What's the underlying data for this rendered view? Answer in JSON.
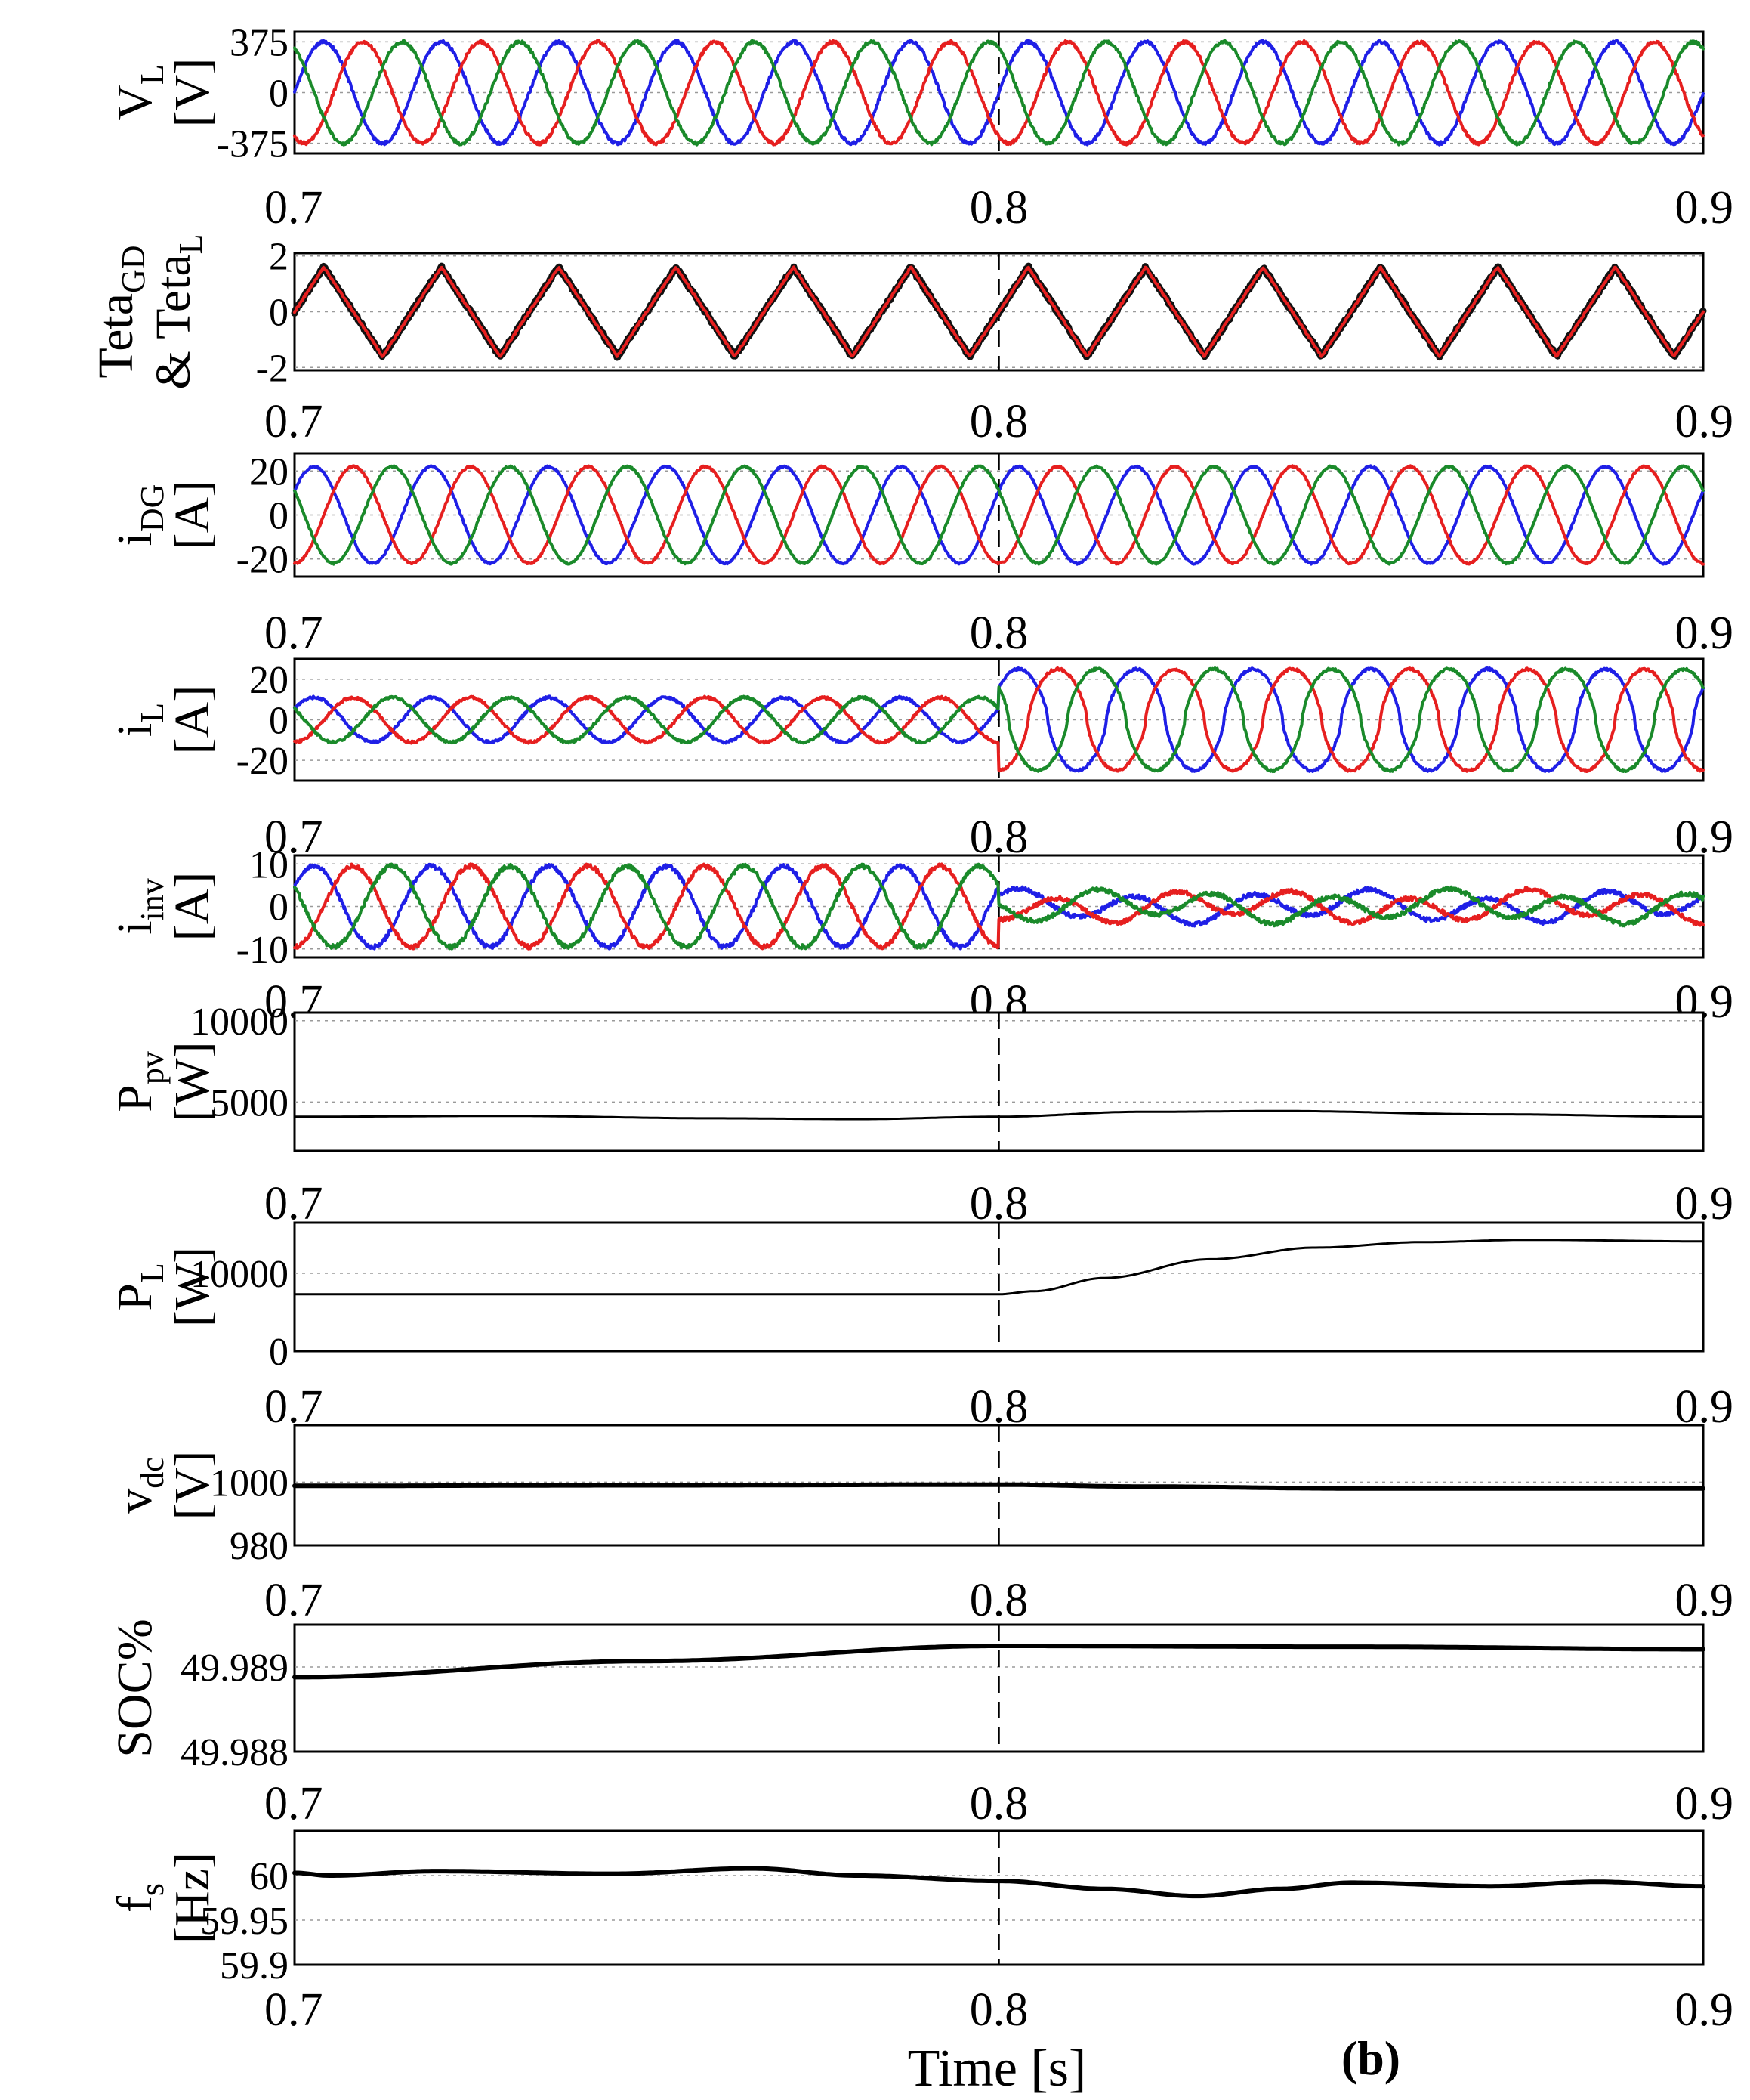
{
  "figure": {
    "xlabel": "Time [s]",
    "panel_label": "(b)"
  },
  "chart_data": [
    {
      "type": "line",
      "ylabel_main": "V",
      "ylabel_sub": "L",
      "ylabel_unit": "[V]",
      "yticks": [
        "375",
        "0",
        "-375"
      ],
      "ytick_values": [
        375,
        0,
        -375
      ],
      "ylim": [
        -450,
        450
      ],
      "xlim": [
        0.7,
        0.9
      ],
      "xticks": [
        "0.7",
        "0.8",
        "0.9"
      ],
      "xtick_values": [
        0.7,
        0.8,
        0.9
      ],
      "grid": true,
      "series": [
        {
          "color": "#1f1fe6",
          "kind": "sine",
          "amplitude": 375,
          "frequency_hz": 60,
          "phase_deg": 0,
          "noise": 12
        },
        {
          "color": "#e61f1f",
          "kind": "sine",
          "amplitude": 375,
          "frequency_hz": 60,
          "phase_deg": -120,
          "noise": 12
        },
        {
          "color": "#1a8a2a",
          "kind": "sine",
          "amplitude": 375,
          "frequency_hz": 60,
          "phase_deg": 120,
          "noise": 12
        }
      ]
    },
    {
      "type": "line",
      "ylabel_main": "Teta",
      "ylabel_sub": "GD",
      "ylabel_line2": "& Teta",
      "ylabel_sub2": "L",
      "yticks": [
        "2",
        "0",
        "-2"
      ],
      "ytick_values": [
        2,
        0,
        -2
      ],
      "ylim": [
        -2.1,
        2.1
      ],
      "xlim": [
        0.7,
        0.9
      ],
      "xticks": [
        "0.7",
        "0.8",
        "0.9"
      ],
      "xtick_values": [
        0.7,
        0.8,
        0.9
      ],
      "grid": true,
      "series": [
        {
          "color": "#111111",
          "kind": "triangle",
          "amplitude": 1.6,
          "frequency_hz": 60,
          "phase_deg": 0,
          "noise": 0.06,
          "width": 9
        },
        {
          "color": "#e61f1f",
          "kind": "triangle",
          "amplitude": 1.6,
          "frequency_hz": 60,
          "phase_deg": 0,
          "noise": 0.03,
          "width": 4
        }
      ]
    },
    {
      "type": "line",
      "ylabel_main": "i",
      "ylabel_sub": "DG",
      "ylabel_unit": "[A]",
      "yticks": [
        "20",
        "0",
        "-20"
      ],
      "ytick_values": [
        20,
        0,
        -20
      ],
      "ylim": [
        -28,
        28
      ],
      "xlim": [
        0.7,
        0.9
      ],
      "xticks": [
        "0.7",
        "0.8",
        "0.9"
      ],
      "xtick_values": [
        0.7,
        0.8,
        0.9
      ],
      "grid": true,
      "series": [
        {
          "color": "#1f1fe6",
          "kind": "sine",
          "amplitude": 22,
          "frequency_hz": 60,
          "phase_deg": 30,
          "noise": 0.4
        },
        {
          "color": "#e61f1f",
          "kind": "sine",
          "amplitude": 22,
          "frequency_hz": 60,
          "phase_deg": -90,
          "noise": 0.4
        },
        {
          "color": "#1a8a2a",
          "kind": "sine",
          "amplitude": 22,
          "frequency_hz": 60,
          "phase_deg": 150,
          "noise": 0.4
        }
      ]
    },
    {
      "type": "line",
      "ylabel_main": "i",
      "ylabel_sub": "L",
      "ylabel_unit": "[A]",
      "yticks": [
        "20",
        "0",
        "-20"
      ],
      "ytick_values": [
        20,
        0,
        -20
      ],
      "ylim": [
        -30,
        30
      ],
      "xlim": [
        0.7,
        0.9
      ],
      "xticks": [
        "0.7",
        "0.8",
        "0.9"
      ],
      "xtick_values": [
        0.7,
        0.8,
        0.9
      ],
      "grid": true,
      "step_time": 0.8,
      "series": [
        {
          "color": "#1f1fe6",
          "kind": "sine_step",
          "amplitude": 11,
          "amplitude_after": 25,
          "frequency_hz": 60,
          "phase_deg": 30,
          "flatten": 0.35,
          "noise": 0.6
        },
        {
          "color": "#e61f1f",
          "kind": "sine_step",
          "amplitude": 11,
          "amplitude_after": 25,
          "frequency_hz": 60,
          "phase_deg": -90,
          "flatten": 0.35,
          "noise": 0.6
        },
        {
          "color": "#1a8a2a",
          "kind": "sine_step",
          "amplitude": 11,
          "amplitude_after": 25,
          "frequency_hz": 60,
          "phase_deg": 150,
          "flatten": 0.35,
          "noise": 0.6
        }
      ]
    },
    {
      "type": "line",
      "ylabel_main": "i",
      "ylabel_sub": "inv",
      "ylabel_unit": "[A]",
      "yticks": [
        "10",
        "0",
        "-10"
      ],
      "ytick_values": [
        10,
        0,
        -10
      ],
      "ylim": [
        -12,
        12
      ],
      "xlim": [
        0.7,
        0.9
      ],
      "xticks": [
        "0.7",
        "0.8",
        "0.9"
      ],
      "xtick_values": [
        0.7,
        0.8,
        0.9
      ],
      "grid": true,
      "step_time": 0.8,
      "series": [
        {
          "color": "#1f1fe6",
          "kind": "sine_step",
          "amplitude": 9.5,
          "amplitude_after": 3,
          "frequency_hz": 60,
          "phase_deg": 30,
          "flatten": 0,
          "noise": 0.5,
          "wobble": 1.2
        },
        {
          "color": "#e61f1f",
          "kind": "sine_step",
          "amplitude": 9.5,
          "amplitude_after": 3,
          "frequency_hz": 60,
          "phase_deg": -90,
          "flatten": 0,
          "noise": 0.5,
          "wobble": 1.2
        },
        {
          "color": "#1a8a2a",
          "kind": "sine_step",
          "amplitude": 9.5,
          "amplitude_after": 3,
          "frequency_hz": 60,
          "phase_deg": 150,
          "flatten": 0,
          "noise": 0.5,
          "wobble": 1.2
        }
      ]
    },
    {
      "type": "line",
      "ylabel_main": "P",
      "ylabel_sub": "pv",
      "ylabel_unit": "[W]",
      "yticks": [
        "10000",
        "5000"
      ],
      "ytick_values": [
        10000,
        5000
      ],
      "ylim": [
        2000,
        10500
      ],
      "xlim": [
        0.7,
        0.9
      ],
      "xticks": [
        "0.7",
        "0.8",
        "0.9"
      ],
      "xtick_values": [
        0.7,
        0.8,
        0.9
      ],
      "grid": true,
      "series": [
        {
          "color": "#000000",
          "kind": "points",
          "width": 3,
          "x": [
            0.7,
            0.73,
            0.76,
            0.78,
            0.8,
            0.82,
            0.84,
            0.87,
            0.9
          ],
          "y": [
            4100,
            4150,
            4000,
            3950,
            4100,
            4400,
            4450,
            4250,
            4100
          ]
        }
      ]
    },
    {
      "type": "line",
      "ylabel_main": "P",
      "ylabel_sub": "L",
      "ylabel_unit": "[W]",
      "yticks": [
        "10000",
        "0"
      ],
      "ytick_values": [
        10000,
        0
      ],
      "ylim": [
        0,
        16500
      ],
      "xlim": [
        0.7,
        0.9
      ],
      "xticks": [
        "0.7",
        "0.8",
        "0.9"
      ],
      "xtick_values": [
        0.7,
        0.8,
        0.9
      ],
      "grid": true,
      "series": [
        {
          "color": "#000000",
          "kind": "points",
          "width": 3,
          "x": [
            0.7,
            0.75,
            0.8,
            0.805,
            0.815,
            0.83,
            0.845,
            0.86,
            0.875,
            0.9
          ],
          "y": [
            7300,
            7300,
            7300,
            7700,
            9400,
            11800,
            13300,
            14000,
            14300,
            14100
          ]
        }
      ]
    },
    {
      "type": "line",
      "ylabel_main": "v",
      "ylabel_sub": "dc",
      "ylabel_unit": "[V]",
      "yticks": [
        "1000",
        "980"
      ],
      "ytick_values": [
        1000,
        980
      ],
      "ylim": [
        980,
        1018
      ],
      "xlim": [
        0.7,
        0.9
      ],
      "xticks": [
        "0.7",
        "0.8",
        "0.9"
      ],
      "xtick_values": [
        0.7,
        0.8,
        0.9
      ],
      "grid": true,
      "series": [
        {
          "color": "#000000",
          "kind": "points",
          "width": 6,
          "x": [
            0.7,
            0.75,
            0.8,
            0.82,
            0.85,
            0.9
          ],
          "y": [
            998.8,
            999.0,
            999.2,
            998.6,
            998.0,
            998.0
          ]
        }
      ]
    },
    {
      "type": "line",
      "ylabel_main": "SOC%",
      "yticks": [
        "49.989",
        "49.988"
      ],
      "ytick_values": [
        49.989,
        49.988
      ],
      "ylim": [
        49.988,
        49.9895
      ],
      "xlim": [
        0.7,
        0.9
      ],
      "xticks": [
        "0.7",
        "0.8",
        "0.9"
      ],
      "xtick_values": [
        0.7,
        0.8,
        0.9
      ],
      "grid": true,
      "series": [
        {
          "color": "#000000",
          "kind": "points",
          "width": 6,
          "x": [
            0.7,
            0.75,
            0.8,
            0.85,
            0.9
          ],
          "y": [
            49.98888,
            49.98907,
            49.98925,
            49.98924,
            49.98921
          ]
        }
      ]
    },
    {
      "type": "line",
      "ylabel_main": "f",
      "ylabel_sub": "s",
      "ylabel_unit": "[Hz]",
      "yticks": [
        "60",
        "59.95",
        "59.9"
      ],
      "ytick_values": [
        60,
        59.95,
        59.9
      ],
      "ylim": [
        59.9,
        60.05
      ],
      "xlim": [
        0.7,
        0.9
      ],
      "xticks": [
        "0.7",
        "0.8",
        "0.9"
      ],
      "xtick_values": [
        0.7,
        0.8,
        0.9
      ],
      "grid": true,
      "series": [
        {
          "color": "#000000",
          "kind": "points",
          "width": 6,
          "x": [
            0.7,
            0.705,
            0.72,
            0.745,
            0.765,
            0.78,
            0.8,
            0.815,
            0.828,
            0.84,
            0.85,
            0.87,
            0.885,
            0.9
          ],
          "y": [
            60.003,
            60.0,
            60.005,
            60.002,
            60.008,
            60.0,
            59.994,
            59.985,
            59.977,
            59.985,
            59.992,
            59.988,
            59.993,
            59.988
          ]
        }
      ]
    }
  ]
}
